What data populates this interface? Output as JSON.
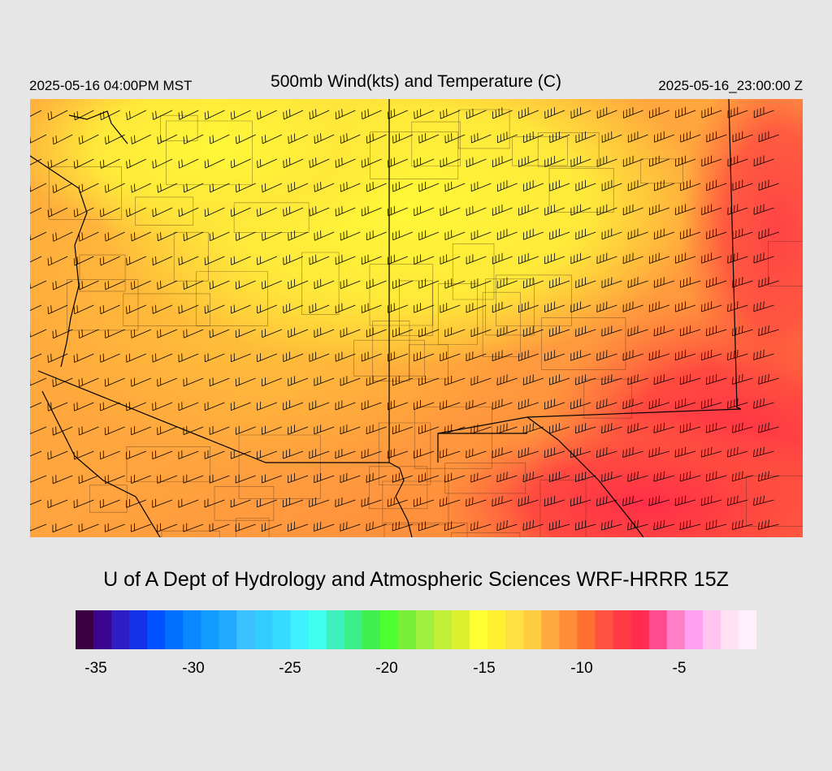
{
  "header": {
    "valid_time_local": "2025-05-16 04:00PM MST",
    "title": "500mb Wind(kts) and Temperature (C)",
    "valid_time_utc": "2025-05-16_23:00:00 Z"
  },
  "credit": "U of A Dept of Hydrology and Atmospheric Sciences WRF-HRRR 15Z",
  "colorbar": {
    "colors": [
      "#3a0040",
      "#3b0590",
      "#2d1dc2",
      "#1331e6",
      "#0052ff",
      "#0070ff",
      "#0a88ff",
      "#129cff",
      "#22aaff",
      "#3ac0ff",
      "#33ccff",
      "#36dcff",
      "#3ff0ff",
      "#40fff0",
      "#3ef0c0",
      "#3aee88",
      "#40f050",
      "#4cff30",
      "#78f038",
      "#a0f040",
      "#c0f038",
      "#dcf030",
      "#ffff33",
      "#fff030",
      "#ffe040",
      "#ffcc40",
      "#ffaa40",
      "#ff8c38",
      "#ff7030",
      "#ff5040",
      "#ff3a44",
      "#ff2c50",
      "#ff4a90",
      "#ff7ec8",
      "#ffa0f0",
      "#ffc4f0",
      "#ffe0f4",
      "#fff0fc"
    ],
    "ticks": [
      "-35",
      "-30",
      "-25",
      "-20",
      "-15",
      "-10",
      "-5"
    ]
  },
  "legend_colors": {
    "cold": "#ffe83a",
    "mid": "#ffa83c",
    "warm": "#ff3a40"
  },
  "map": {
    "background": "#ffa83c",
    "grid_lines": "#000000"
  }
}
